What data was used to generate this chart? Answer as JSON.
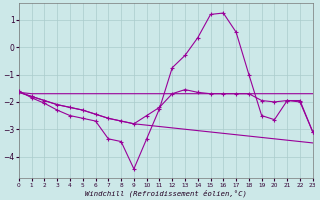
{
  "background_color": "#cce8e8",
  "grid_color": "#aacccc",
  "line_color": "#990099",
  "x_values": [
    0,
    1,
    2,
    3,
    4,
    5,
    6,
    7,
    8,
    9,
    10,
    11,
    12,
    13,
    14,
    15,
    16,
    17,
    18,
    19,
    20,
    21,
    22,
    23
  ],
  "curve_main": [
    -1.6,
    -1.85,
    -2.05,
    -2.3,
    -2.5,
    -2.6,
    -2.7,
    -3.35,
    -3.45,
    -4.45,
    -3.35,
    -2.25,
    -0.75,
    -0.3,
    0.35,
    1.2,
    1.25,
    0.55,
    -1.0,
    -2.5,
    -2.65,
    -1.95,
    -1.95,
    -3.1
  ],
  "line_flat": [
    -1.65,
    -1.7,
    -1.7,
    -1.7,
    -1.7,
    -1.7,
    -1.7,
    -1.7,
    -1.7,
    -1.7,
    -1.7,
    -1.7,
    -1.7,
    -1.7,
    -1.7,
    -1.7,
    -1.7,
    -1.7,
    -1.7,
    -1.7,
    -1.7,
    -1.7,
    -1.7,
    -1.7
  ],
  "line_diag": [
    -1.65,
    -1.8,
    -1.95,
    -2.1,
    -2.2,
    -2.3,
    -2.45,
    -2.6,
    -2.7,
    -2.8,
    -2.85,
    -2.9,
    -2.95,
    -3.0,
    -3.05,
    -3.1,
    -3.15,
    -3.2,
    -3.25,
    -3.3,
    -3.35,
    -3.4,
    -3.45,
    -3.5
  ],
  "line_peak": [
    -1.65,
    -1.8,
    -1.95,
    -2.1,
    -2.2,
    -2.3,
    -2.45,
    -2.6,
    -2.7,
    -2.8,
    -2.5,
    -2.2,
    -1.7,
    -1.55,
    -1.65,
    -1.7,
    -1.7,
    -1.7,
    -1.7,
    -1.95,
    -2.0,
    -1.95,
    -2.0,
    -3.1
  ],
  "xlabel": "Windchill (Refroidissement éolien,°C)",
  "ylim": [
    -4.8,
    1.6
  ],
  "xlim": [
    0,
    23
  ],
  "yticks": [
    1,
    0,
    -1,
    -2,
    -3,
    -4
  ],
  "xticks": [
    0,
    1,
    2,
    3,
    4,
    5,
    6,
    7,
    8,
    9,
    10,
    11,
    12,
    13,
    14,
    15,
    16,
    17,
    18,
    19,
    20,
    21,
    22,
    23
  ]
}
